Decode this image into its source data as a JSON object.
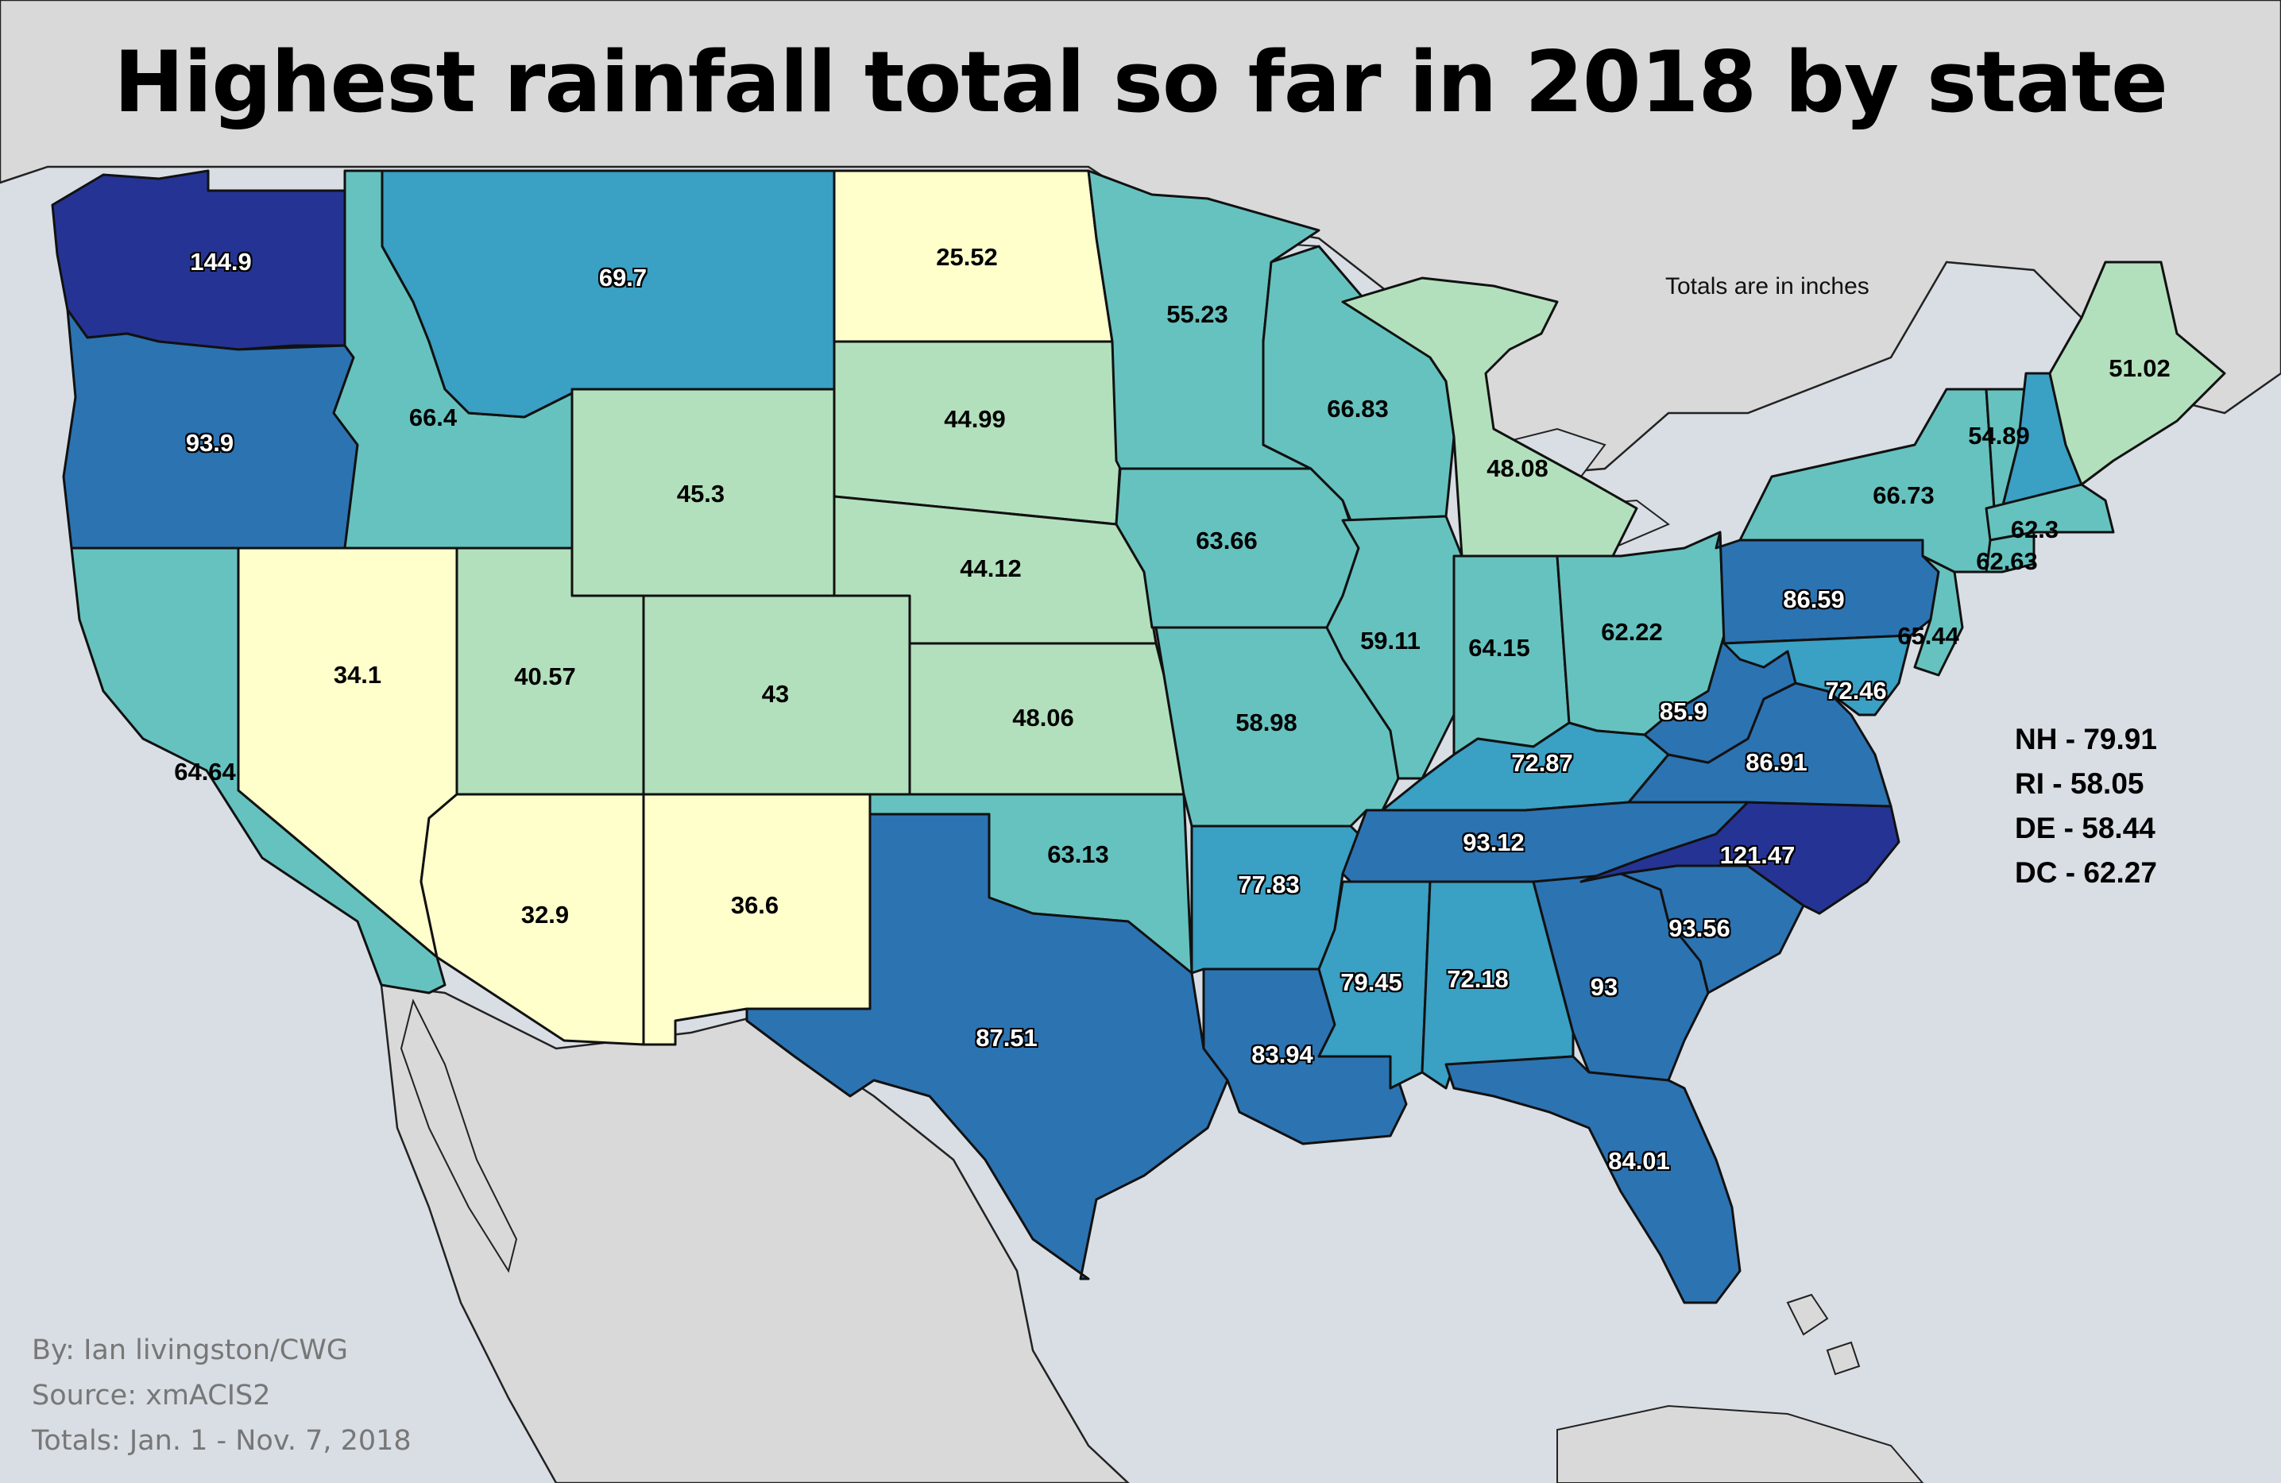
{
  "title": "Highest rainfall total so far in 2018 by state",
  "note": "Totals are in inches",
  "credits": [
    "By: Ian livingston/CWG",
    "Source: xmACIS2",
    "Totals: Jan. 1 - Nov. 7, 2018"
  ],
  "small_states": [
    {
      "label": "NH - 79.91",
      "state": "NH",
      "value": 79.91
    },
    {
      "label": "RI - 58.05",
      "state": "RI",
      "value": 58.05
    },
    {
      "label": "DE - 58.44",
      "state": "DE",
      "value": 58.44
    },
    {
      "label": "DC - 62.27",
      "state": "DC",
      "value": 62.27
    }
  ],
  "color_scale": {
    "lightest": "#ffffcc",
    "light_green": "#b3e0bc",
    "teal": "#66c2bf",
    "blue_teal": "#3aa0c4",
    "blue": "#2c73b2",
    "dark_blue": "#253494"
  },
  "states": [
    {
      "state": "WA",
      "label": "144.9",
      "value": 144.9,
      "color": "#253494"
    },
    {
      "state": "OR",
      "label": "93.9",
      "value": 93.9,
      "color": "#2c73b2"
    },
    {
      "state": "CA",
      "label": "64.64",
      "value": 64.64,
      "color": "#66c2bf"
    },
    {
      "state": "ID",
      "label": "66.4",
      "value": 66.4,
      "color": "#66c2bf"
    },
    {
      "state": "NV",
      "label": "34.1",
      "value": 34.1,
      "color": "#ffffcc"
    },
    {
      "state": "MT",
      "label": "69.7",
      "value": 69.7,
      "color": "#3aa0c4"
    },
    {
      "state": "WY",
      "label": "45.3",
      "value": 45.3,
      "color": "#b3e0bc"
    },
    {
      "state": "UT",
      "label": "40.57",
      "value": 40.57,
      "color": "#b3e0bc"
    },
    {
      "state": "AZ",
      "label": "32.9",
      "value": 32.9,
      "color": "#ffffcc"
    },
    {
      "state": "CO",
      "label": "43",
      "value": 43,
      "color": "#b3e0bc"
    },
    {
      "state": "NM",
      "label": "36.6",
      "value": 36.6,
      "color": "#ffffcc"
    },
    {
      "state": "ND",
      "label": "25.52",
      "value": 25.52,
      "color": "#ffffcc"
    },
    {
      "state": "SD",
      "label": "44.99",
      "value": 44.99,
      "color": "#b3e0bc"
    },
    {
      "state": "NE",
      "label": "44.12",
      "value": 44.12,
      "color": "#b3e0bc"
    },
    {
      "state": "KS",
      "label": "48.06",
      "value": 48.06,
      "color": "#b3e0bc"
    },
    {
      "state": "OK",
      "label": "63.13",
      "value": 63.13,
      "color": "#66c2bf"
    },
    {
      "state": "TX",
      "label": "87.51",
      "value": 87.51,
      "color": "#2c73b2"
    },
    {
      "state": "MN",
      "label": "55.23",
      "value": 55.23,
      "color": "#66c2bf"
    },
    {
      "state": "IA",
      "label": "63.66",
      "value": 63.66,
      "color": "#66c2bf"
    },
    {
      "state": "MO",
      "label": "58.98",
      "value": 58.98,
      "color": "#66c2bf"
    },
    {
      "state": "AR",
      "label": "77.83",
      "value": 77.83,
      "color": "#3aa0c4"
    },
    {
      "state": "LA",
      "label": "83.94",
      "value": 83.94,
      "color": "#2c73b2"
    },
    {
      "state": "WI",
      "label": "66.83",
      "value": 66.83,
      "color": "#66c2bf"
    },
    {
      "state": "IL",
      "label": "59.11",
      "value": 59.11,
      "color": "#66c2bf"
    },
    {
      "state": "MI",
      "label": "48.08",
      "value": 48.08,
      "color": "#b3e0bc"
    },
    {
      "state": "IN",
      "label": "64.15",
      "value": 64.15,
      "color": "#66c2bf"
    },
    {
      "state": "OH",
      "label": "62.22",
      "value": 62.22,
      "color": "#66c2bf"
    },
    {
      "state": "KY",
      "label": "72.87",
      "value": 72.87,
      "color": "#3aa0c4"
    },
    {
      "state": "TN",
      "label": "93.12",
      "value": 93.12,
      "color": "#2c73b2"
    },
    {
      "state": "MS",
      "label": "79.45",
      "value": 79.45,
      "color": "#3aa0c4"
    },
    {
      "state": "AL",
      "label": "72.18",
      "value": 72.18,
      "color": "#3aa0c4"
    },
    {
      "state": "GA",
      "label": "93",
      "value": 93,
      "color": "#2c73b2"
    },
    {
      "state": "FL",
      "label": "84.01",
      "value": 84.01,
      "color": "#2c73b2"
    },
    {
      "state": "SC",
      "label": "93.56",
      "value": 93.56,
      "color": "#2c73b2"
    },
    {
      "state": "NC",
      "label": "121.47",
      "value": 121.47,
      "color": "#253494"
    },
    {
      "state": "VA",
      "label": "86.91",
      "value": 86.91,
      "color": "#2c73b2"
    },
    {
      "state": "WV",
      "label": "85.9",
      "value": 85.9,
      "color": "#2c73b2"
    },
    {
      "state": "PA",
      "label": "86.59",
      "value": 86.59,
      "color": "#2c73b2"
    },
    {
      "state": "MD",
      "label": "72.46",
      "value": 72.46,
      "color": "#3aa0c4"
    },
    {
      "state": "NJ",
      "label": "65.44",
      "value": 65.44,
      "color": "#66c2bf"
    },
    {
      "state": "NY",
      "label": "66.73",
      "value": 66.73,
      "color": "#66c2bf"
    },
    {
      "state": "VT",
      "label": "54.89",
      "value": 54.89,
      "color": "#66c2bf"
    },
    {
      "state": "NH",
      "label": "",
      "value": 79.91,
      "color": "#3aa0c4"
    },
    {
      "state": "ME",
      "label": "51.02",
      "value": 51.02,
      "color": "#b3e0bc"
    },
    {
      "state": "MA",
      "label": "62.3",
      "value": 62.3,
      "color": "#66c2bf"
    },
    {
      "state": "CT",
      "label": "62.63",
      "value": 62.63,
      "color": "#66c2bf"
    }
  ]
}
